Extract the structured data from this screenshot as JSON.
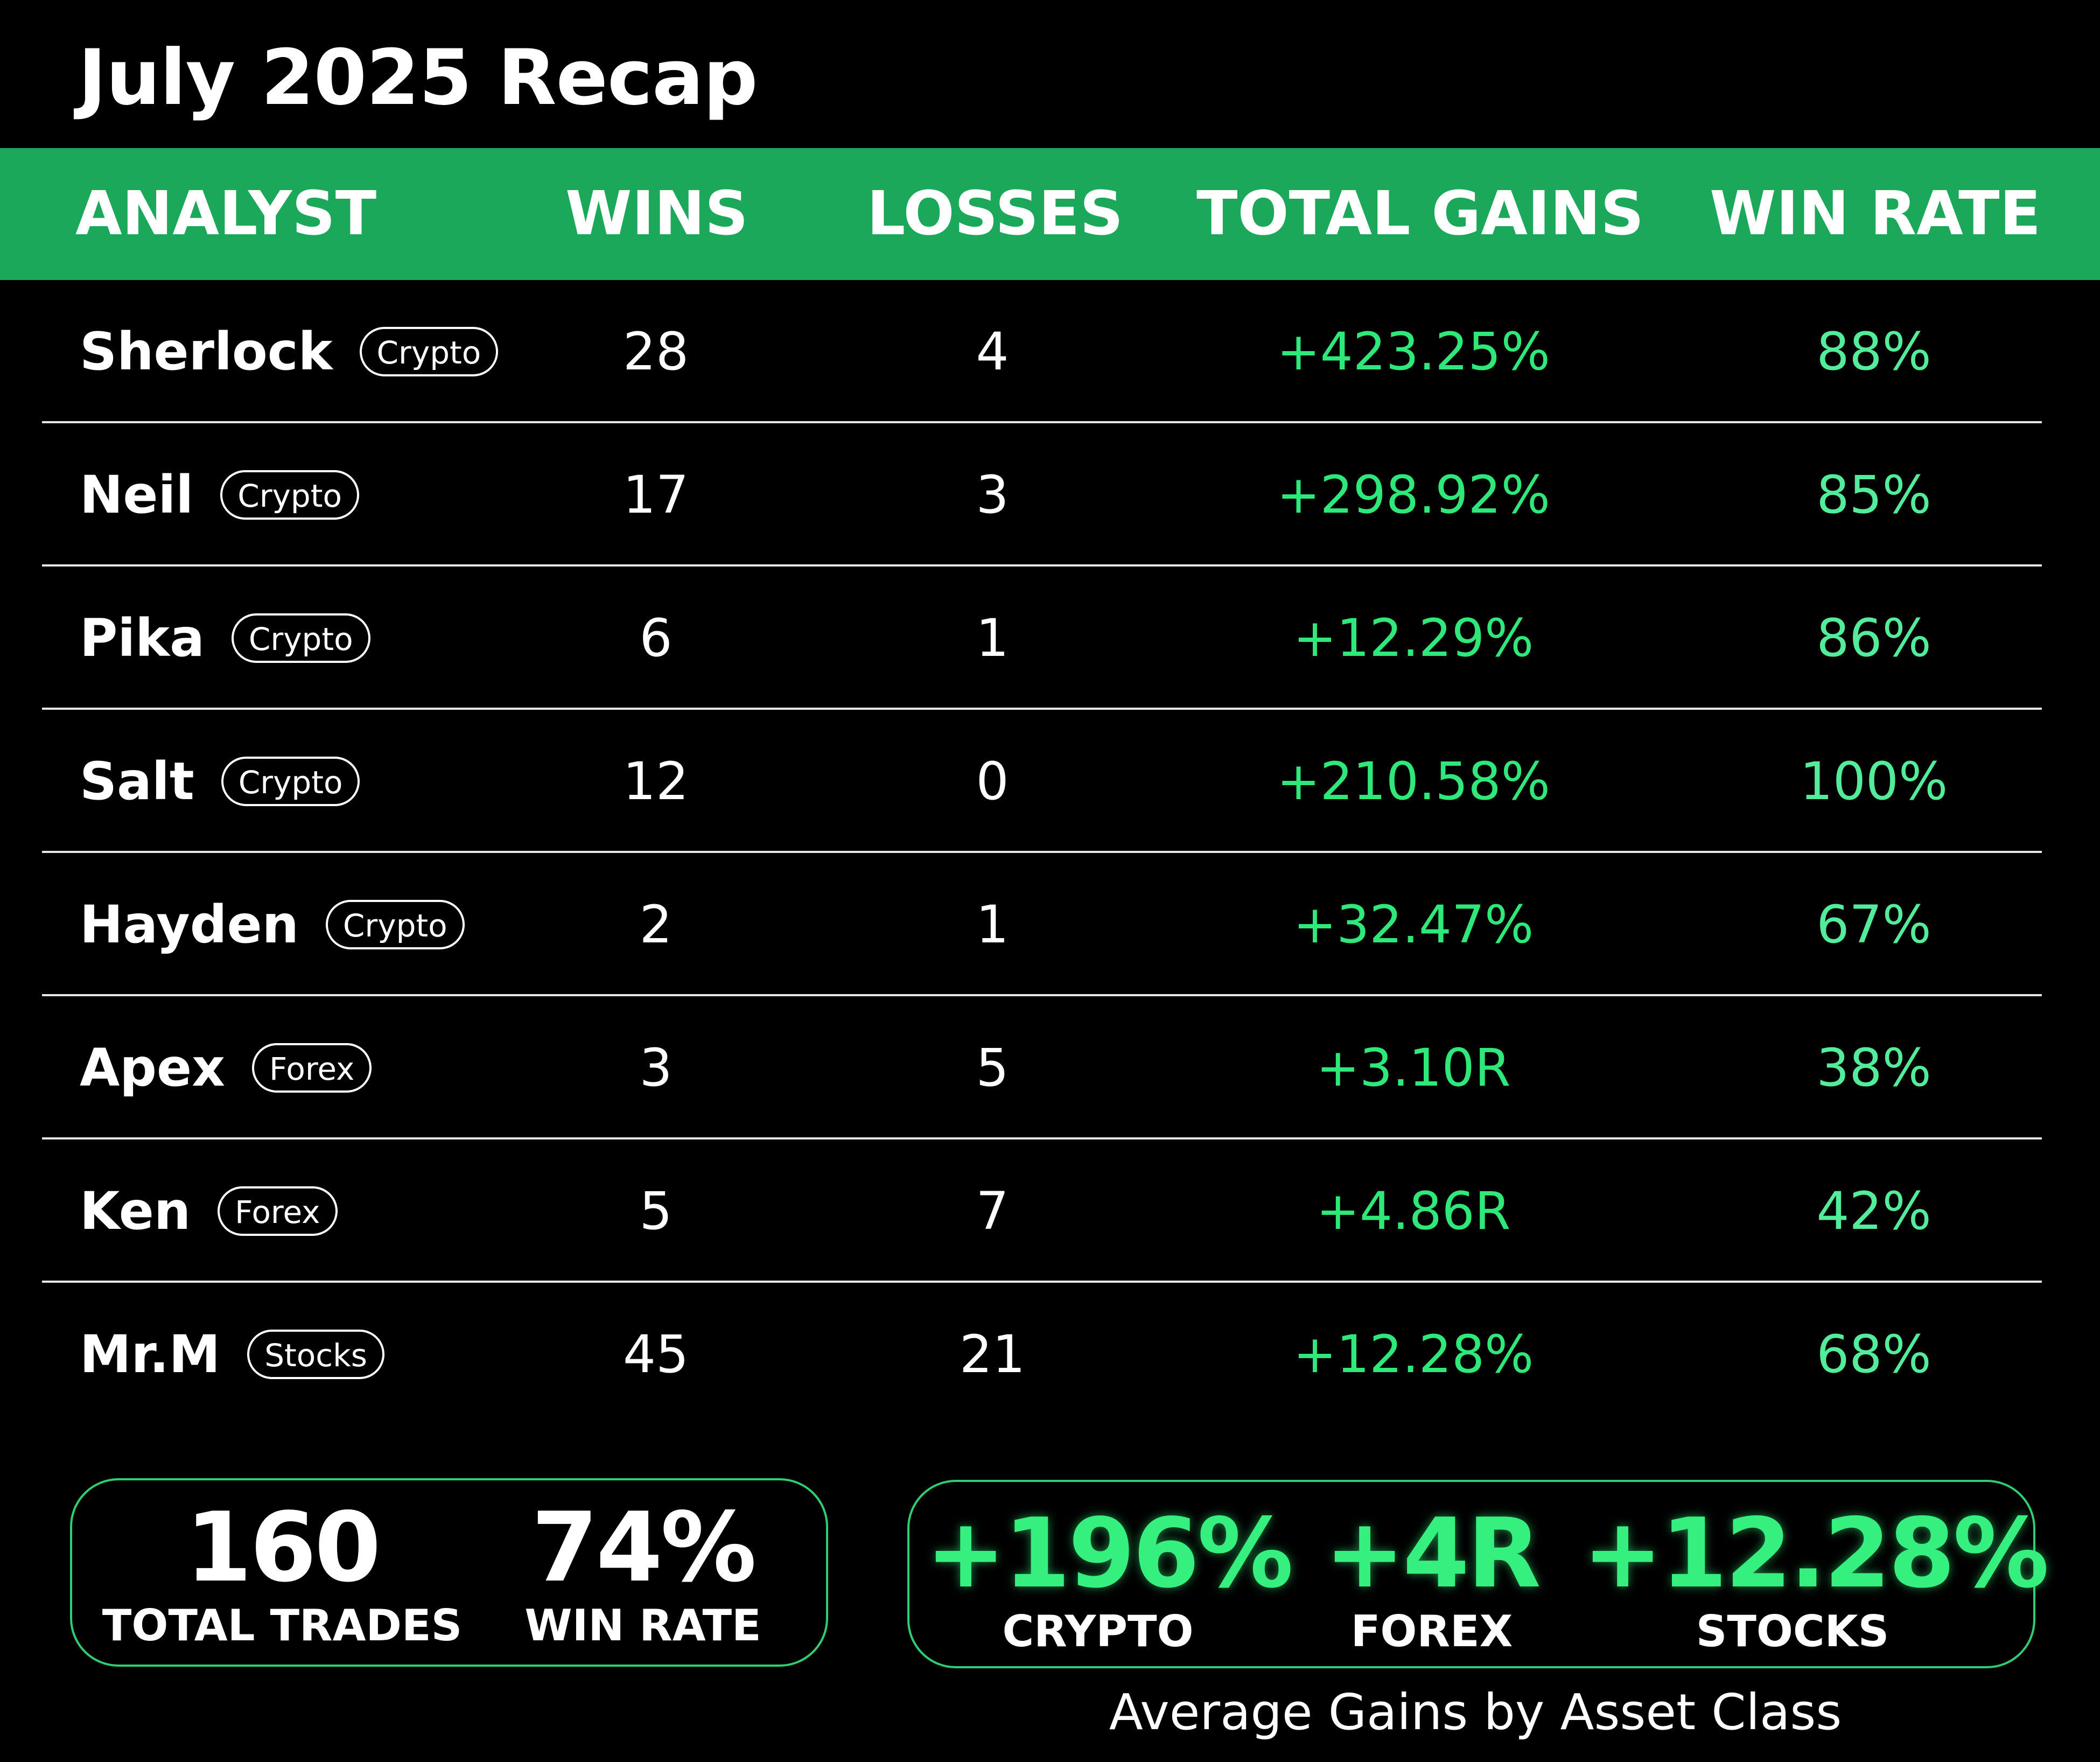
{
  "title": "July 2025 Recap",
  "colors": {
    "header_bg": "#1ca85a",
    "gain_green": "#2ee87a",
    "rate_green": "#52ec9b",
    "background": "#000000"
  },
  "columns": {
    "analyst": "ANALYST",
    "wins": "WINS",
    "losses": "LOSSES",
    "total_gains": "TOTAL GAINS",
    "win_rate": "WIN RATE"
  },
  "rows": [
    {
      "name": "Sherlock",
      "badge": "Crypto",
      "wins": "28",
      "losses": "4",
      "gains": "+423.25%",
      "rate": "88%"
    },
    {
      "name": "Neil",
      "badge": "Crypto",
      "wins": "17",
      "losses": "3",
      "gains": "+298.92%",
      "rate": "85%"
    },
    {
      "name": "Pika",
      "badge": "Crypto",
      "wins": "6",
      "losses": "1",
      "gains": "+12.29%",
      "rate": "86%"
    },
    {
      "name": "Salt",
      "badge": "Crypto",
      "wins": "12",
      "losses": "0",
      "gains": "+210.58%",
      "rate": "100%"
    },
    {
      "name": "Hayden",
      "badge": "Crypto",
      "wins": "2",
      "losses": "1",
      "gains": "+32.47%",
      "rate": "67%"
    },
    {
      "name": "Apex",
      "badge": "Forex",
      "wins": "3",
      "losses": "5",
      "gains": "+3.10R",
      "rate": "38%"
    },
    {
      "name": "Ken",
      "badge": "Forex",
      "wins": "5",
      "losses": "7",
      "gains": "+4.86R",
      "rate": "42%"
    },
    {
      "name": "Mr.M",
      "badge": "Stocks",
      "wins": "45",
      "losses": "21",
      "gains": "+12.28%",
      "rate": "68%"
    }
  ],
  "summary": {
    "total_trades_value": "160",
    "total_trades_label": "TOTAL TRADES",
    "win_rate_value": "74%",
    "win_rate_label": "WIN RATE"
  },
  "averages": {
    "crypto_value": "+196%",
    "crypto_label": "CRYPTO",
    "forex_value": "+4R",
    "forex_label": "FOREX",
    "stocks_value": "+12.28%",
    "stocks_label": "STOCKS",
    "caption": "Average Gains by Asset Class"
  }
}
